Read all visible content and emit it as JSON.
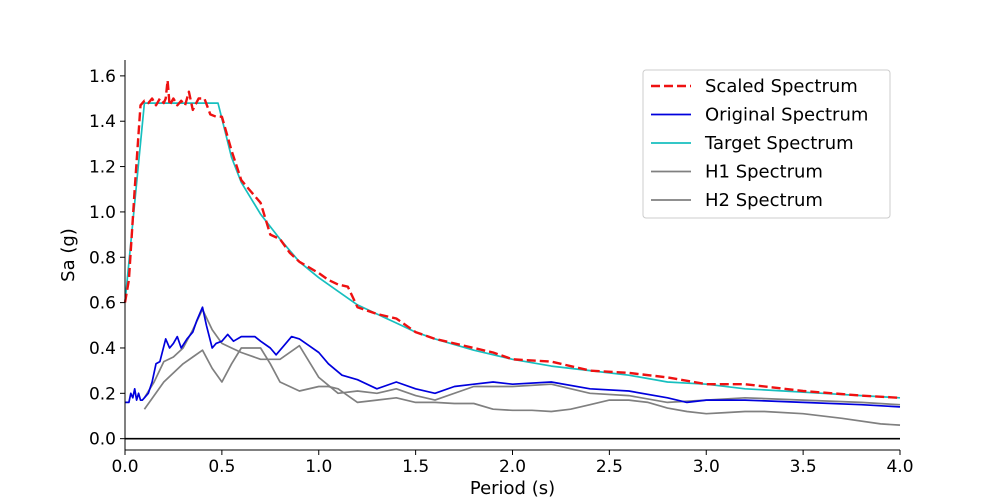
{
  "chart_data": {
    "type": "line",
    "xlabel": "Period (s)",
    "ylabel": "Sa (g)",
    "xlim": [
      0,
      4.0
    ],
    "ylim": [
      -0.05,
      1.67
    ],
    "xticks": [
      "0.0",
      "0.5",
      "1.0",
      "1.5",
      "2.0",
      "2.5",
      "3.0",
      "3.5",
      "4.0"
    ],
    "yticks": [
      "0.0",
      "0.2",
      "0.4",
      "0.6",
      "0.8",
      "1.0",
      "1.2",
      "1.4",
      "1.6"
    ],
    "grid": false,
    "legend_position": "top-right",
    "zero_line": true,
    "series": [
      {
        "name": "Scaled Spectrum",
        "color": "#ee1111",
        "style": "dashed",
        "x": [
          0.0,
          0.02,
          0.05,
          0.08,
          0.1,
          0.12,
          0.14,
          0.16,
          0.18,
          0.2,
          0.21,
          0.22,
          0.23,
          0.25,
          0.27,
          0.29,
          0.31,
          0.33,
          0.35,
          0.38,
          0.41,
          0.44,
          0.47,
          0.5,
          0.55,
          0.6,
          0.65,
          0.7,
          0.75,
          0.8,
          0.85,
          0.9,
          1.0,
          1.05,
          1.1,
          1.15,
          1.2,
          1.3,
          1.4,
          1.5,
          1.6,
          1.7,
          1.8,
          1.9,
          2.0,
          2.2,
          2.4,
          2.6,
          2.8,
          3.0,
          3.2,
          3.5,
          3.8,
          4.0
        ],
        "y": [
          0.6,
          0.7,
          1.1,
          1.47,
          1.49,
          1.48,
          1.5,
          1.47,
          1.5,
          1.48,
          1.5,
          1.58,
          1.47,
          1.5,
          1.47,
          1.49,
          1.47,
          1.53,
          1.45,
          1.5,
          1.5,
          1.43,
          1.42,
          1.42,
          1.27,
          1.14,
          1.09,
          1.04,
          0.9,
          0.88,
          0.82,
          0.78,
          0.73,
          0.7,
          0.68,
          0.67,
          0.58,
          0.55,
          0.53,
          0.47,
          0.44,
          0.42,
          0.4,
          0.38,
          0.35,
          0.34,
          0.3,
          0.29,
          0.27,
          0.24,
          0.24,
          0.21,
          0.19,
          0.18
        ]
      },
      {
        "name": "Original Spectrum",
        "color": "#0000dd",
        "style": "solid",
        "x": [
          0.0,
          0.02,
          0.03,
          0.04,
          0.05,
          0.06,
          0.07,
          0.08,
          0.09,
          0.1,
          0.12,
          0.14,
          0.16,
          0.18,
          0.21,
          0.23,
          0.25,
          0.27,
          0.29,
          0.32,
          0.35,
          0.37,
          0.4,
          0.42,
          0.45,
          0.47,
          0.5,
          0.53,
          0.56,
          0.6,
          0.63,
          0.67,
          0.7,
          0.75,
          0.78,
          0.82,
          0.86,
          0.9,
          0.95,
          1.0,
          1.05,
          1.12,
          1.2,
          1.3,
          1.4,
          1.5,
          1.6,
          1.7,
          1.8,
          1.9,
          2.0,
          2.2,
          2.4,
          2.6,
          2.8,
          2.9,
          3.0,
          3.2,
          3.5,
          3.8,
          4.0
        ],
        "y": [
          0.16,
          0.16,
          0.2,
          0.18,
          0.22,
          0.17,
          0.2,
          0.17,
          0.17,
          0.18,
          0.2,
          0.25,
          0.33,
          0.34,
          0.44,
          0.4,
          0.42,
          0.45,
          0.4,
          0.44,
          0.47,
          0.52,
          0.58,
          0.5,
          0.4,
          0.42,
          0.43,
          0.46,
          0.43,
          0.45,
          0.45,
          0.45,
          0.43,
          0.4,
          0.37,
          0.41,
          0.45,
          0.44,
          0.41,
          0.38,
          0.33,
          0.28,
          0.26,
          0.22,
          0.25,
          0.22,
          0.2,
          0.23,
          0.24,
          0.25,
          0.24,
          0.25,
          0.22,
          0.21,
          0.18,
          0.16,
          0.17,
          0.17,
          0.16,
          0.15,
          0.14
        ]
      },
      {
        "name": "Target Spectrum",
        "color": "#17bfbf",
        "style": "solid",
        "x": [
          0.0,
          0.1,
          0.48,
          0.55,
          0.6,
          0.7,
          0.8,
          0.9,
          1.0,
          1.1,
          1.2,
          1.3,
          1.4,
          1.5,
          1.6,
          1.8,
          2.0,
          2.2,
          2.4,
          2.6,
          2.8,
          3.0,
          3.2,
          3.4,
          3.6,
          3.8,
          4.0
        ],
        "y": [
          0.6,
          1.48,
          1.48,
          1.24,
          1.13,
          0.99,
          0.88,
          0.78,
          0.71,
          0.65,
          0.59,
          0.55,
          0.51,
          0.47,
          0.44,
          0.39,
          0.35,
          0.32,
          0.3,
          0.28,
          0.25,
          0.24,
          0.22,
          0.21,
          0.2,
          0.19,
          0.18
        ]
      },
      {
        "name": "H1 Spectrum",
        "color": "#808080",
        "style": "solid",
        "x": [
          0.1,
          0.2,
          0.3,
          0.35,
          0.4,
          0.45,
          0.5,
          0.55,
          0.6,
          0.65,
          0.7,
          0.75,
          0.8,
          0.9,
          1.0,
          1.05,
          1.1,
          1.2,
          1.3,
          1.4,
          1.5,
          1.6,
          1.7,
          1.8,
          1.9,
          2.0,
          2.1,
          2.2,
          2.3,
          2.4,
          2.5,
          2.6,
          2.7,
          2.8,
          2.9,
          3.0,
          3.1,
          3.2,
          3.3,
          3.5,
          3.7,
          3.9,
          4.0
        ],
        "y": [
          0.13,
          0.25,
          0.33,
          0.36,
          0.39,
          0.31,
          0.25,
          0.33,
          0.4,
          0.4,
          0.4,
          0.33,
          0.25,
          0.21,
          0.23,
          0.23,
          0.22,
          0.16,
          0.17,
          0.18,
          0.16,
          0.16,
          0.155,
          0.155,
          0.13,
          0.125,
          0.125,
          0.12,
          0.13,
          0.15,
          0.17,
          0.17,
          0.16,
          0.135,
          0.12,
          0.11,
          0.115,
          0.12,
          0.12,
          0.11,
          0.09,
          0.065,
          0.06
        ]
      },
      {
        "name": "H2 Spectrum",
        "color": "#808080",
        "style": "solid",
        "x": [
          0.1,
          0.15,
          0.2,
          0.25,
          0.3,
          0.35,
          0.4,
          0.45,
          0.5,
          0.55,
          0.6,
          0.7,
          0.8,
          0.9,
          1.0,
          1.1,
          1.2,
          1.3,
          1.4,
          1.5,
          1.6,
          1.8,
          2.0,
          2.2,
          2.4,
          2.6,
          2.8,
          3.0,
          3.2,
          3.5,
          3.8,
          4.0
        ],
        "y": [
          0.18,
          0.25,
          0.34,
          0.36,
          0.4,
          0.48,
          0.57,
          0.48,
          0.42,
          0.4,
          0.38,
          0.35,
          0.35,
          0.41,
          0.27,
          0.2,
          0.21,
          0.2,
          0.22,
          0.19,
          0.17,
          0.23,
          0.23,
          0.24,
          0.2,
          0.19,
          0.16,
          0.17,
          0.18,
          0.17,
          0.16,
          0.15
        ]
      }
    ]
  }
}
